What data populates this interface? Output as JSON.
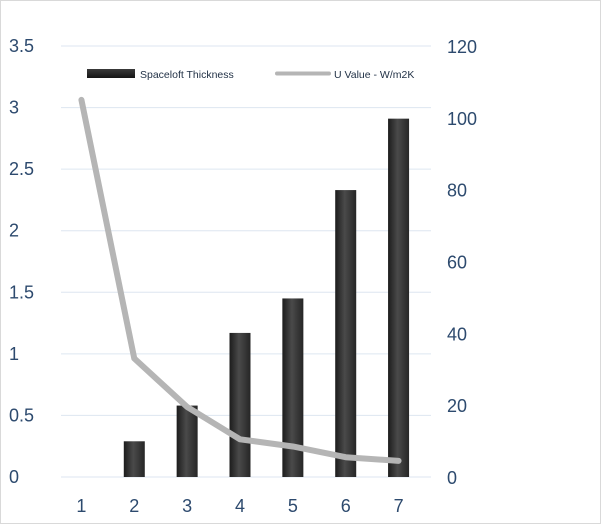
{
  "chart_data": {
    "type": "bar",
    "categories": [
      "1",
      "2",
      "3",
      "4",
      "5",
      "6",
      "7"
    ],
    "series": [
      {
        "name": "Spaceloft Thickness",
        "kind": "bar",
        "axis": "left",
        "color": "#2a2a2a",
        "values": [
          0,
          0.29,
          0.58,
          1.17,
          1.45,
          2.33,
          2.91
        ]
      },
      {
        "name": "U Value - W/m2K",
        "kind": "line",
        "axis": "right",
        "color": "#b5b5b5",
        "values": [
          105,
          33,
          19.5,
          10.5,
          8.5,
          5.5,
          4.5
        ]
      }
    ],
    "y_left": {
      "min": 0,
      "max": 3.5,
      "ticks": [
        0,
        0.5,
        1,
        1.5,
        2,
        2.5,
        3,
        3.5
      ],
      "tick_labels": [
        "0",
        "0.5",
        "1",
        "1.5",
        "2",
        "2.5",
        "3",
        "3.5"
      ]
    },
    "y_right": {
      "min": 0,
      "max": 120,
      "ticks": [
        0,
        20,
        40,
        60,
        80,
        100,
        120
      ],
      "tick_labels": [
        "0",
        "20",
        "40",
        "60",
        "80",
        "100",
        "120"
      ]
    },
    "legend": {
      "position": "top",
      "items": [
        "Spaceloft Thickness",
        "U Value - W/m2K"
      ]
    },
    "grid": true,
    "title": "",
    "xlabel": "",
    "ylabel": ""
  }
}
